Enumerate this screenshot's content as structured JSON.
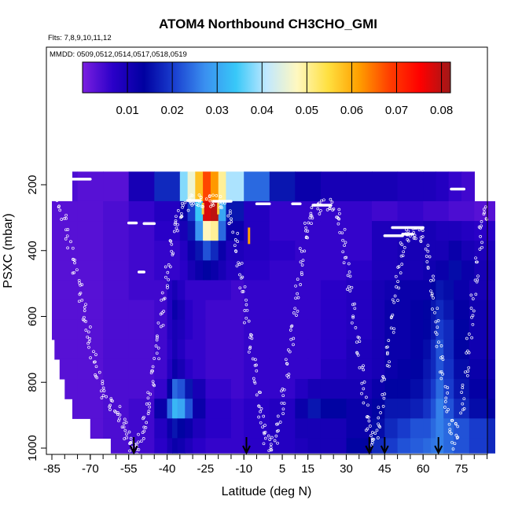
{
  "chart_data": {
    "type": "heatmap",
    "title": "ATOM4 Northbound CH3CHO_GMI",
    "subtitle_flights": "Flts: 7,8,9,10,11,12",
    "subtitle_dates": "MMDD: 0509,0512,0514,0517,0518,0519",
    "xlabel": "Latitude (deg N)",
    "ylabel": "PSXC (mbar)",
    "xlim": [
      -88,
      88
    ],
    "ylim": [
      1020,
      150
    ],
    "x_ticks": [
      "-85",
      "-70",
      "-55",
      "-40",
      "-25",
      "-10",
      "5",
      "15",
      "30",
      "45",
      "60",
      "75"
    ],
    "y_ticks": [
      "200",
      "400",
      "600",
      "800",
      "1000"
    ],
    "colorbar": {
      "min": 0.0,
      "max": 0.082,
      "ticks": [
        "0.01",
        "0.02",
        "0.03",
        "0.04",
        "0.05",
        "0.06",
        "0.07",
        "0.08"
      ],
      "colors": [
        "#7b1fe0",
        "#2a00c8",
        "#0000a0",
        "#1a40d0",
        "#3a90f0",
        "#38c8f8",
        "#c0e8ff",
        "#fff8c0",
        "#ffe040",
        "#ffa000",
        "#ff4000",
        "#ff0000",
        "#a01818"
      ]
    },
    "pressure_levels": [
      160,
      250,
      310,
      370,
      430,
      490,
      550,
      610,
      670,
      730,
      790,
      850,
      910,
      970,
      1015
    ],
    "upper_lat_bins": [
      -85,
      -75,
      -65,
      -55,
      -45,
      -35,
      -32,
      -29,
      -26,
      -23,
      -20,
      -17,
      -10,
      0,
      10,
      20,
      30,
      40,
      50,
      60,
      65,
      70,
      75,
      80
    ],
    "lower_lat_bins": [
      -85,
      -75,
      -65,
      -55,
      -45,
      -40,
      -38,
      -36,
      -33,
      -30,
      -25,
      -15,
      -10,
      0,
      10,
      15,
      20,
      30,
      40,
      45,
      50,
      55,
      60,
      63,
      65,
      68,
      72,
      78,
      85
    ],
    "upper_values": [
      [
        0.004,
        0.003,
        0.003,
        0.01,
        0.018,
        0.038,
        0.046,
        0.058,
        0.068,
        0.062,
        0.05,
        0.04,
        0.024,
        0.016,
        0.012,
        0.01,
        0.01,
        0.01,
        0.009,
        0.009,
        0.008,
        0.006,
        0.005,
        0.004
      ],
      [
        0.003,
        0.003,
        0.004,
        0.006,
        0.008,
        0.012,
        0.02,
        0.034,
        0.078,
        0.08,
        0.03,
        0.016,
        0.008,
        0.006,
        0.006,
        0.006,
        0.006,
        0.005,
        0.006,
        0.005,
        0.005,
        0.004,
        0.004,
        0.003
      ],
      [
        0.003,
        0.003,
        0.004,
        0.005,
        0.007,
        0.01,
        0.016,
        0.028,
        0.048,
        0.05,
        0.024,
        0.012,
        0.008,
        0.006,
        0.006,
        0.006,
        0.006,
        0.009,
        0.009,
        0.01,
        0.009,
        0.009,
        0.008,
        0.007
      ],
      [
        0.003,
        0.003,
        0.004,
        0.005,
        0.006,
        0.008,
        0.012,
        0.016,
        0.022,
        0.018,
        0.012,
        0.009,
        0.008,
        0.007,
        0.006,
        0.006,
        0.006,
        0.009,
        0.01,
        0.01,
        0.01,
        0.012,
        0.01,
        0.009
      ],
      [
        0.003,
        0.003,
        0.004,
        0.005,
        0.006,
        0.007,
        0.01,
        0.012,
        0.014,
        0.012,
        0.01,
        0.008,
        0.007,
        0.006,
        0.006,
        0.006,
        0.007,
        0.009,
        0.01,
        0.011,
        0.012,
        0.015,
        0.012,
        0.01
      ]
    ],
    "lower_values": [
      [
        0.003,
        0.003,
        0.004,
        0.005,
        0.005,
        0.008,
        0.01,
        0.008,
        0.006,
        0.006,
        0.006,
        0.005,
        0.006,
        0.006,
        0.006,
        0.006,
        0.007,
        0.008,
        0.01,
        0.011,
        0.012,
        0.012,
        0.012,
        0.014,
        0.016,
        0.015,
        0.012,
        0.01,
        0.009
      ],
      [
        0.003,
        0.003,
        0.004,
        0.004,
        0.005,
        0.008,
        0.012,
        0.01,
        0.007,
        0.006,
        0.005,
        0.005,
        0.006,
        0.006,
        0.006,
        0.006,
        0.007,
        0.008,
        0.01,
        0.012,
        0.012,
        0.013,
        0.014,
        0.016,
        0.018,
        0.016,
        0.013,
        0.011,
        0.01
      ],
      [
        0.003,
        0.003,
        0.004,
        0.004,
        0.005,
        0.008,
        0.01,
        0.009,
        0.007,
        0.006,
        0.005,
        0.005,
        0.006,
        0.006,
        0.006,
        0.006,
        0.007,
        0.008,
        0.01,
        0.012,
        0.012,
        0.013,
        0.014,
        0.016,
        0.02,
        0.018,
        0.014,
        0.011,
        0.01
      ],
      [
        0.003,
        0.003,
        0.004,
        0.004,
        0.005,
        0.007,
        0.01,
        0.008,
        0.006,
        0.006,
        0.005,
        0.005,
        0.006,
        0.006,
        0.006,
        0.006,
        0.007,
        0.009,
        0.01,
        0.012,
        0.012,
        0.013,
        0.015,
        0.018,
        0.022,
        0.018,
        0.014,
        0.011,
        0.01
      ],
      [
        0.003,
        0.003,
        0.004,
        0.004,
        0.005,
        0.008,
        0.012,
        0.01,
        0.007,
        0.006,
        0.005,
        0.005,
        0.006,
        0.006,
        0.006,
        0.006,
        0.008,
        0.009,
        0.01,
        0.012,
        0.013,
        0.014,
        0.016,
        0.018,
        0.022,
        0.019,
        0.015,
        0.012,
        0.011
      ],
      [
        0.003,
        0.003,
        0.004,
        0.004,
        0.006,
        0.014,
        0.024,
        0.022,
        0.016,
        0.01,
        0.006,
        0.005,
        0.006,
        0.006,
        0.008,
        0.01,
        0.01,
        0.01,
        0.012,
        0.014,
        0.014,
        0.015,
        0.017,
        0.02,
        0.024,
        0.02,
        0.016,
        0.013,
        0.012
      ],
      [
        0.003,
        0.003,
        0.004,
        0.005,
        0.012,
        0.024,
        0.032,
        0.03,
        0.022,
        0.012,
        0.007,
        0.006,
        0.007,
        0.008,
        0.012,
        0.016,
        0.014,
        0.012,
        0.014,
        0.016,
        0.016,
        0.017,
        0.019,
        0.022,
        0.026,
        0.022,
        0.018,
        0.015,
        0.014
      ],
      [
        0.003,
        0.003,
        0.004,
        0.005,
        0.008,
        0.012,
        0.016,
        0.014,
        0.012,
        0.009,
        0.007,
        0.006,
        0.007,
        0.008,
        0.01,
        0.01,
        0.01,
        0.012,
        0.015,
        0.018,
        0.02,
        0.022,
        0.022,
        0.024,
        0.026,
        0.024,
        0.022,
        0.02,
        0.018
      ],
      [
        0.003,
        0.003,
        0.004,
        0.005,
        0.007,
        0.01,
        0.012,
        0.011,
        0.009,
        0.007,
        0.006,
        0.006,
        0.007,
        0.008,
        0.009,
        0.01,
        0.01,
        0.014,
        0.018,
        0.02,
        0.022,
        0.023,
        0.024,
        0.025,
        0.026,
        0.024,
        0.022,
        0.02,
        0.018
      ],
      [
        0.003,
        0.003,
        0.004,
        0.005,
        0.006,
        0.008,
        0.01,
        0.009,
        0.008,
        0.007,
        0.006,
        0.006,
        0.007,
        0.008,
        0.009,
        0.01,
        0.012,
        0.016,
        0.018,
        0.019,
        0.02,
        0.021,
        0.022,
        0.024,
        0.026,
        0.023,
        0.021,
        0.019,
        0.018
      ],
      [
        0.003,
        0.003,
        0.004,
        0.005,
        0.006,
        0.008,
        0.009,
        0.008,
        0.007,
        0.006,
        0.006,
        0.006,
        0.007,
        0.008,
        0.009,
        0.01,
        0.012,
        0.015,
        0.017,
        0.018,
        0.019,
        0.02,
        0.021,
        0.023,
        0.025,
        0.022,
        0.02,
        0.018,
        0.017
      ]
    ],
    "flight_track": [
      [
        -83,
        230
      ],
      [
        -80,
        320
      ],
      [
        -77,
        420
      ],
      [
        -74,
        520
      ],
      [
        -72,
        600
      ],
      [
        -70,
        690
      ],
      [
        -67,
        770
      ],
      [
        -64,
        850
      ],
      [
        -60,
        880
      ],
      [
        -57,
        930
      ],
      [
        -55,
        980
      ],
      [
        -52,
        1005
      ],
      [
        -49,
        940
      ],
      [
        -47,
        860
      ],
      [
        -45,
        760
      ],
      [
        -43,
        650
      ],
      [
        -41,
        540
      ],
      [
        -39,
        430
      ],
      [
        -37,
        330
      ],
      [
        -35,
        280
      ],
      [
        -31,
        250
      ],
      [
        -27,
        248
      ],
      [
        -22,
        250
      ],
      [
        -18,
        252
      ],
      [
        -14,
        330
      ],
      [
        -12,
        430
      ],
      [
        -10,
        540
      ],
      [
        -8,
        650
      ],
      [
        -6,
        760
      ],
      [
        -4,
        870
      ],
      [
        -2,
        960
      ],
      [
        1,
        1000
      ],
      [
        4,
        930
      ],
      [
        6,
        820
      ],
      [
        8,
        700
      ],
      [
        10,
        580
      ],
      [
        12,
        460
      ],
      [
        14,
        350
      ],
      [
        16,
        290
      ],
      [
        20,
        262
      ],
      [
        25,
        262
      ],
      [
        28,
        320
      ],
      [
        30,
        420
      ],
      [
        32,
        540
      ],
      [
        34,
        660
      ],
      [
        36,
        780
      ],
      [
        38,
        900
      ],
      [
        40,
        990
      ],
      [
        43,
        920
      ],
      [
        45,
        800
      ],
      [
        47,
        680
      ],
      [
        49,
        560
      ],
      [
        51,
        440
      ],
      [
        53,
        355
      ],
      [
        56,
        350
      ],
      [
        59,
        340
      ],
      [
        62,
        420
      ],
      [
        64,
        540
      ],
      [
        66,
        660
      ],
      [
        68,
        780
      ],
      [
        70,
        900
      ],
      [
        72,
        990
      ],
      [
        75,
        880
      ],
      [
        77,
        740
      ],
      [
        79,
        600
      ],
      [
        81,
        460
      ],
      [
        83,
        330
      ],
      [
        85,
        260
      ]
    ],
    "white_segments": [
      [
        -79,
        -70,
        183
      ],
      [
        -55,
        -52,
        316
      ],
      [
        -49,
        -45,
        318
      ],
      [
        -32,
        -27,
        248
      ],
      [
        -22,
        -15,
        250
      ],
      [
        -5,
        0,
        258
      ],
      [
        9,
        12,
        258
      ],
      [
        17,
        24,
        262
      ],
      [
        45,
        52,
        355
      ],
      [
        48,
        60,
        330
      ],
      [
        52,
        56,
        350
      ],
      [
        71,
        76,
        213
      ],
      [
        -51,
        -49,
        465
      ]
    ],
    "hot_verticals": [
      [
        -26,
        255,
        290,
        "#ffd040"
      ],
      [
        -20,
        255,
        290,
        "#ffd040"
      ],
      [
        -8,
        330,
        380,
        "#ffa000"
      ]
    ],
    "flight_markers": [
      -53,
      -9,
      39,
      45,
      66
    ]
  }
}
